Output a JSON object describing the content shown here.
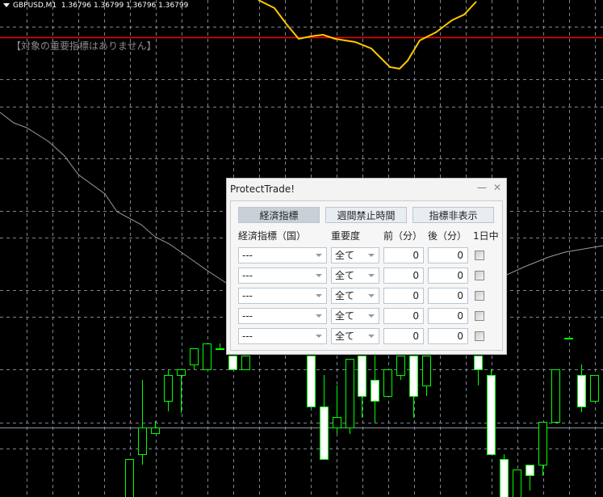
{
  "chart_header": {
    "symbol": "GBPUSD,M1",
    "prices": "1.36796 1.36799 1.36796 1.36799"
  },
  "notice": "【対象の重要指標はありません】",
  "colors": {
    "background": "#000000",
    "grid": "#7a8694",
    "bull": "#00ff00",
    "bear_fill": "#ffffff",
    "ma_line": "#9a9a9a",
    "indicator_line": "#ffc800",
    "level_line": "#ff0000"
  },
  "panel": {
    "title": "ProtectTrade!",
    "minimize_icon": "minimize-icon",
    "close_icon": "close-icon",
    "tabs": [
      {
        "label": "経済指標",
        "selected": true
      },
      {
        "label": "週間禁止時間",
        "selected": false
      },
      {
        "label": "指標非表示",
        "selected": false
      }
    ],
    "headers": {
      "country": "経済指標（国）",
      "importance": "重要度",
      "before": "前（分）",
      "after": "後（分）",
      "all_day": "1日中"
    },
    "rows": [
      {
        "indicator": "---",
        "importance": "全て",
        "before": "0",
        "after": "0",
        "all_day": false
      },
      {
        "indicator": "---",
        "importance": "全て",
        "before": "0",
        "after": "0",
        "all_day": false
      },
      {
        "indicator": "---",
        "importance": "全て",
        "before": "0",
        "after": "0",
        "all_day": false
      },
      {
        "indicator": "---",
        "importance": "全て",
        "before": "0",
        "after": "0",
        "all_day": false
      },
      {
        "indicator": "---",
        "importance": "全て",
        "before": "0",
        "after": "0",
        "all_day": false
      }
    ]
  }
}
